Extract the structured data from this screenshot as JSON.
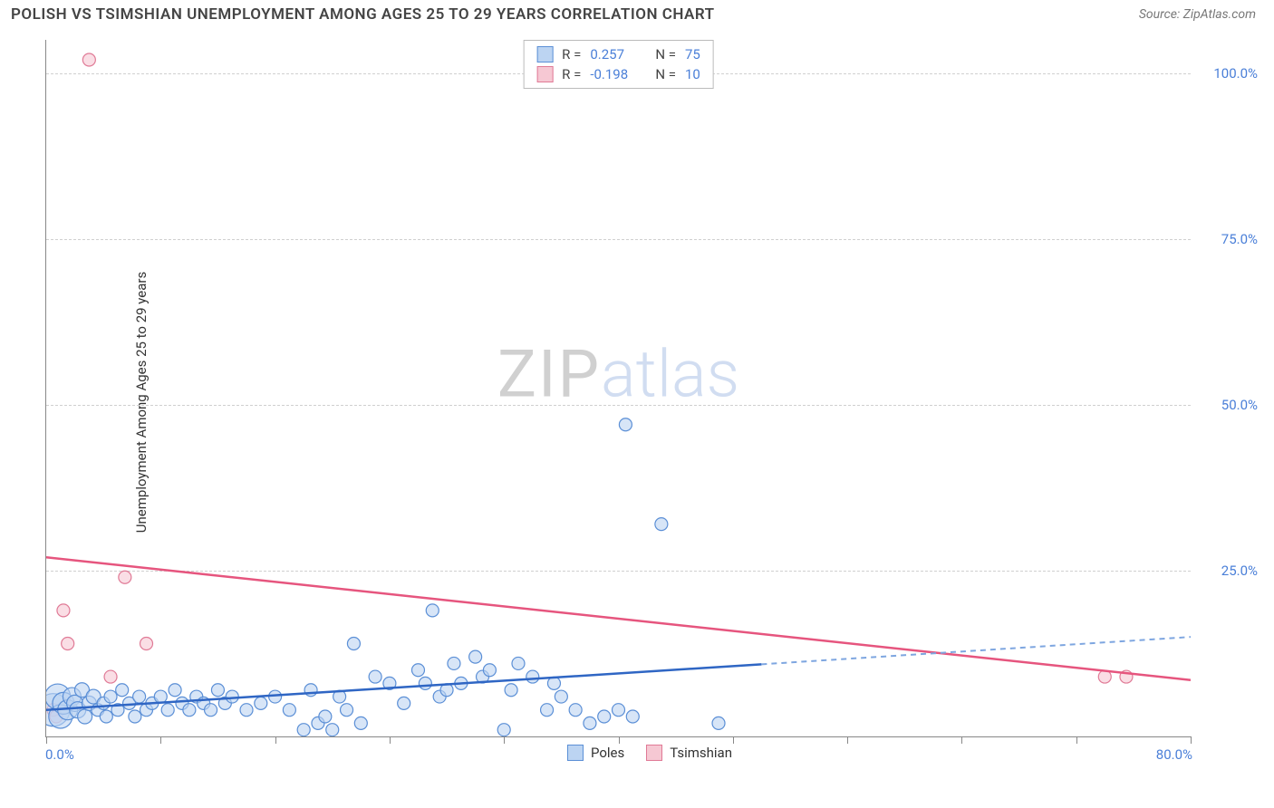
{
  "header": {
    "title": "POLISH VS TSIMSHIAN UNEMPLOYMENT AMONG AGES 25 TO 29 YEARS CORRELATION CHART",
    "source": "Source: ZipAtlas.com"
  },
  "ylabel": "Unemployment Among Ages 25 to 29 years",
  "watermark": {
    "left": "ZIP",
    "right": "atlas"
  },
  "chart": {
    "type": "scatter",
    "background_color": "#ffffff",
    "grid_color": "#d0d0d0",
    "axis_color": "#888888",
    "text_color": "#333333",
    "tick_label_color": "#4a7fd8",
    "xlim": [
      0,
      80
    ],
    "ylim": [
      0,
      105
    ],
    "xaxis_min_label": "0.0%",
    "xaxis_max_label": "80.0%",
    "xtick_positions": [
      0,
      8,
      16,
      24,
      32,
      40,
      48,
      56,
      64,
      72,
      80
    ],
    "ytick_lines": [
      25,
      50,
      75,
      100
    ],
    "ytick_labels": [
      "25.0%",
      "50.0%",
      "75.0%",
      "100.0%"
    ],
    "stats": [
      {
        "r_label": "R =",
        "r": "0.257",
        "n_label": "N =",
        "n": "75",
        "swatch_fill": "#bcd4f2",
        "swatch_border": "#5b8fd6"
      },
      {
        "r_label": "R =",
        "r": "-0.198",
        "n_label": "N =",
        "n": "10",
        "swatch_fill": "#f6c8d3",
        "swatch_border": "#e07a96"
      }
    ],
    "legend": [
      {
        "label": "Poles",
        "fill": "#bcd4f2",
        "border": "#5b8fd6"
      },
      {
        "label": "Tsimshian",
        "fill": "#f6c8d3",
        "border": "#e07a96"
      }
    ],
    "series": {
      "poles": {
        "fill": "#bcd4f2",
        "stroke": "#5b8fd6",
        "fill_opacity": 0.6,
        "line_color": "#2f66c4",
        "line_dash_color": "#7ea6e0",
        "line_solid_xend": 50,
        "points": [
          {
            "x": 0.5,
            "y": 4,
            "r": 18
          },
          {
            "x": 0.8,
            "y": 6,
            "r": 14
          },
          {
            "x": 1.0,
            "y": 3,
            "r": 13
          },
          {
            "x": 1.2,
            "y": 5,
            "r": 12
          },
          {
            "x": 1.5,
            "y": 4,
            "r": 11
          },
          {
            "x": 1.8,
            "y": 6,
            "r": 10
          },
          {
            "x": 2.0,
            "y": 5,
            "r": 9
          },
          {
            "x": 2.2,
            "y": 4,
            "r": 9
          },
          {
            "x": 2.5,
            "y": 7,
            "r": 8
          },
          {
            "x": 2.7,
            "y": 3,
            "r": 8
          },
          {
            "x": 3.0,
            "y": 5,
            "r": 8
          },
          {
            "x": 3.3,
            "y": 6,
            "r": 8
          },
          {
            "x": 3.6,
            "y": 4,
            "r": 7
          },
          {
            "x": 4.0,
            "y": 5,
            "r": 7
          },
          {
            "x": 4.2,
            "y": 3,
            "r": 7
          },
          {
            "x": 4.5,
            "y": 6,
            "r": 7
          },
          {
            "x": 5.0,
            "y": 4,
            "r": 7
          },
          {
            "x": 5.3,
            "y": 7,
            "r": 7
          },
          {
            "x": 5.8,
            "y": 5,
            "r": 7
          },
          {
            "x": 6.2,
            "y": 3,
            "r": 7
          },
          {
            "x": 6.5,
            "y": 6,
            "r": 7
          },
          {
            "x": 7.0,
            "y": 4,
            "r": 7
          },
          {
            "x": 7.4,
            "y": 5,
            "r": 7
          },
          {
            "x": 8.0,
            "y": 6,
            "r": 7
          },
          {
            "x": 8.5,
            "y": 4,
            "r": 7
          },
          {
            "x": 9.0,
            "y": 7,
            "r": 7
          },
          {
            "x": 9.5,
            "y": 5,
            "r": 7
          },
          {
            "x": 10.0,
            "y": 4,
            "r": 7
          },
          {
            "x": 10.5,
            "y": 6,
            "r": 7
          },
          {
            "x": 11.0,
            "y": 5,
            "r": 7
          },
          {
            "x": 11.5,
            "y": 4,
            "r": 7
          },
          {
            "x": 12.0,
            "y": 7,
            "r": 7
          },
          {
            "x": 12.5,
            "y": 5,
            "r": 7
          },
          {
            "x": 13.0,
            "y": 6,
            "r": 7
          },
          {
            "x": 14.0,
            "y": 4,
            "r": 7
          },
          {
            "x": 15.0,
            "y": 5,
            "r": 7
          },
          {
            "x": 16.0,
            "y": 6,
            "r": 7
          },
          {
            "x": 17.0,
            "y": 4,
            "r": 7
          },
          {
            "x": 18.0,
            "y": 1,
            "r": 7
          },
          {
            "x": 18.5,
            "y": 7,
            "r": 7
          },
          {
            "x": 19.0,
            "y": 2,
            "r": 7
          },
          {
            "x": 19.5,
            "y": 3,
            "r": 7
          },
          {
            "x": 20.0,
            "y": 1,
            "r": 7
          },
          {
            "x": 20.5,
            "y": 6,
            "r": 7
          },
          {
            "x": 21.0,
            "y": 4,
            "r": 7
          },
          {
            "x": 21.5,
            "y": 14,
            "r": 7
          },
          {
            "x": 22.0,
            "y": 2,
            "r": 7
          },
          {
            "x": 23.0,
            "y": 9,
            "r": 7
          },
          {
            "x": 24.0,
            "y": 8,
            "r": 7
          },
          {
            "x": 25.0,
            "y": 5,
            "r": 7
          },
          {
            "x": 26.0,
            "y": 10,
            "r": 7
          },
          {
            "x": 26.5,
            "y": 8,
            "r": 7
          },
          {
            "x": 27.0,
            "y": 19,
            "r": 7
          },
          {
            "x": 27.5,
            "y": 6,
            "r": 7
          },
          {
            "x": 28.0,
            "y": 7,
            "r": 7
          },
          {
            "x": 28.5,
            "y": 11,
            "r": 7
          },
          {
            "x": 29.0,
            "y": 8,
            "r": 7
          },
          {
            "x": 30.0,
            "y": 12,
            "r": 7
          },
          {
            "x": 30.5,
            "y": 9,
            "r": 7
          },
          {
            "x": 31.0,
            "y": 10,
            "r": 7
          },
          {
            "x": 32.0,
            "y": 1,
            "r": 7
          },
          {
            "x": 32.5,
            "y": 7,
            "r": 7
          },
          {
            "x": 33.0,
            "y": 11,
            "r": 7
          },
          {
            "x": 34.0,
            "y": 9,
            "r": 7
          },
          {
            "x": 35.0,
            "y": 4,
            "r": 7
          },
          {
            "x": 35.5,
            "y": 8,
            "r": 7
          },
          {
            "x": 36.0,
            "y": 6,
            "r": 7
          },
          {
            "x": 37.0,
            "y": 4,
            "r": 7
          },
          {
            "x": 38.0,
            "y": 2,
            "r": 7
          },
          {
            "x": 39.0,
            "y": 3,
            "r": 7
          },
          {
            "x": 40.0,
            "y": 4,
            "r": 7
          },
          {
            "x": 40.5,
            "y": 47,
            "r": 7
          },
          {
            "x": 41.0,
            "y": 3,
            "r": 7
          },
          {
            "x": 43.0,
            "y": 32,
            "r": 7
          },
          {
            "x": 47.0,
            "y": 2,
            "r": 7
          }
        ],
        "trend": {
          "x1": 0,
          "y1": 4.0,
          "x2": 80,
          "y2": 15.0
        }
      },
      "tsimshian": {
        "fill": "#f6c8d3",
        "stroke": "#e07a96",
        "fill_opacity": 0.6,
        "line_color": "#e6557e",
        "points": [
          {
            "x": 0.5,
            "y": 4,
            "r": 7
          },
          {
            "x": 0.7,
            "y": 3,
            "r": 7
          },
          {
            "x": 1.2,
            "y": 19,
            "r": 7
          },
          {
            "x": 1.5,
            "y": 14,
            "r": 7
          },
          {
            "x": 3.0,
            "y": 102,
            "r": 7
          },
          {
            "x": 4.5,
            "y": 9,
            "r": 7
          },
          {
            "x": 5.5,
            "y": 24,
            "r": 7
          },
          {
            "x": 7.0,
            "y": 14,
            "r": 7
          },
          {
            "x": 74.0,
            "y": 9,
            "r": 7
          },
          {
            "x": 75.5,
            "y": 9,
            "r": 7
          }
        ],
        "trend": {
          "x1": 0,
          "y1": 27.0,
          "x2": 80,
          "y2": 8.5
        }
      }
    }
  }
}
